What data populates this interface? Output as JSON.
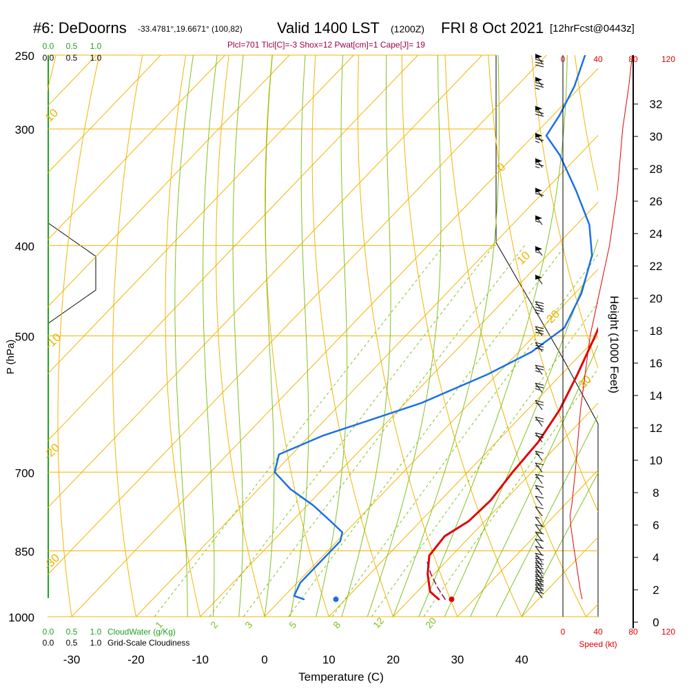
{
  "header": {
    "station": "#6: DeDoorns",
    "coords": "-33.4781°,19.6671° (100,82)",
    "valid": "Valid 1400 LST",
    "valid_z": "(1200Z)",
    "date": "FRI 8 Oct 2021",
    "forecast": "[12hrFcst@0443z]",
    "params": "Plcl=701 Tlcl[C]=-3 Shox=12 Pwat[cm]=1 Cape[J]= 19"
  },
  "colors": {
    "temperature": "#e00000",
    "dewpoint": "#1a6fe8",
    "parcel": "#8b0045",
    "isotherm": "#f0b400",
    "dry_adiabat": "#f0b400",
    "moist_adiabat": "#80c020",
    "mixing_ratio": "#80c020",
    "cloudwater": "#20a020",
    "speed": "#e00000"
  },
  "chart_data": {
    "type": "skew-t",
    "xlabel": "Temperature (C)",
    "ylabel": "P (hPa)",
    "right_ylabel": "Height (1000 Feet)",
    "pressure_levels": [
      1000,
      850,
      700,
      500,
      400,
      300,
      250
    ],
    "temperature_ticks": [
      -30,
      -20,
      -10,
      0,
      10,
      20,
      30,
      40
    ],
    "height_ticks": [
      0,
      2,
      4,
      6,
      8,
      10,
      12,
      14,
      16,
      18,
      20,
      22,
      24,
      26,
      28,
      30,
      32
    ],
    "temperature_profile": [
      {
        "p": 958,
        "t": 24.5
      },
      {
        "p": 940,
        "t": 22.0
      },
      {
        "p": 900,
        "t": 19.0
      },
      {
        "p": 860,
        "t": 16.5
      },
      {
        "p": 820,
        "t": 16.0
      },
      {
        "p": 790,
        "t": 17.5
      },
      {
        "p": 750,
        "t": 17.8
      },
      {
        "p": 700,
        "t": 17.0
      },
      {
        "p": 650,
        "t": 16.5
      },
      {
        "p": 600,
        "t": 15.0
      },
      {
        "p": 550,
        "t": 12.5
      },
      {
        "p": 500,
        "t": 9.5
      },
      {
        "p": 450,
        "t": 6.0
      },
      {
        "p": 400,
        "t": 2.0
      },
      {
        "p": 350,
        "t": -2.5
      },
      {
        "p": 300,
        "t": -8.5
      },
      {
        "p": 270,
        "t": -12.0
      },
      {
        "p": 250,
        "t": -13.5
      }
    ],
    "dewpoint_profile": [
      {
        "p": 958,
        "t": 3.5
      },
      {
        "p": 950,
        "t": 1.5
      },
      {
        "p": 920,
        "t": 0.5
      },
      {
        "p": 880,
        "t": 0.5
      },
      {
        "p": 830,
        "t": 0.5
      },
      {
        "p": 812,
        "t": -0.5
      },
      {
        "p": 790,
        "t": -4.0
      },
      {
        "p": 760,
        "t": -9.0
      },
      {
        "p": 730,
        "t": -15.0
      },
      {
        "p": 700,
        "t": -20.0
      },
      {
        "p": 670,
        "t": -22.0
      },
      {
        "p": 640,
        "t": -18.0
      },
      {
        "p": 590,
        "t": -7.5
      },
      {
        "p": 550,
        "t": -1.5
      },
      {
        "p": 520,
        "t": 2.0
      },
      {
        "p": 490,
        "t": 3.5
      },
      {
        "p": 450,
        "t": 1.0
      },
      {
        "p": 410,
        "t": -3.0
      },
      {
        "p": 380,
        "t": -8.0
      },
      {
        "p": 350,
        "t": -15.0
      },
      {
        "p": 320,
        "t": -23.0
      },
      {
        "p": 305,
        "t": -28.0
      },
      {
        "p": 290,
        "t": -29.0
      },
      {
        "p": 270,
        "t": -31.0
      },
      {
        "p": 250,
        "t": -34.0
      }
    ],
    "parcel_profile": [
      {
        "p": 958,
        "t": 25.5
      },
      {
        "p": 930,
        "t": 22.5
      },
      {
        "p": 900,
        "t": 19.5
      },
      {
        "p": 870,
        "t": 16.8
      }
    ],
    "surface_temperature": 26.5,
    "surface_dewpoint": 8.5,
    "surface_pressure": 958,
    "cloudwater_scale": [
      "0.0",
      "0.5",
      "1.0"
    ],
    "cloudiness_scale": [
      "0.0",
      "0.5",
      "1.0"
    ],
    "speed_ticks": [
      "0",
      "40",
      "80",
      "120"
    ],
    "wind_speed_profile": [
      {
        "p": 958,
        "kt": 22
      },
      {
        "p": 940,
        "kt": 20
      },
      {
        "p": 900,
        "kt": 17
      },
      {
        "p": 850,
        "kt": 13
      },
      {
        "p": 800,
        "kt": 9
      },
      {
        "p": 780,
        "kt": 8
      },
      {
        "p": 760,
        "kt": 10
      },
      {
        "p": 700,
        "kt": 14
      },
      {
        "p": 600,
        "kt": 20
      },
      {
        "p": 500,
        "kt": 31
      },
      {
        "p": 400,
        "kt": 53
      },
      {
        "p": 350,
        "kt": 62
      },
      {
        "p": 300,
        "kt": 68
      },
      {
        "p": 270,
        "kt": 75
      },
      {
        "p": 250,
        "kt": 79
      }
    ],
    "wind_barbs": [
      {
        "p": 955,
        "kt": 20
      },
      {
        "p": 945,
        "kt": 20
      },
      {
        "p": 935,
        "kt": 20
      },
      {
        "p": 925,
        "kt": 20
      },
      {
        "p": 915,
        "kt": 15
      },
      {
        "p": 905,
        "kt": 15
      },
      {
        "p": 895,
        "kt": 15
      },
      {
        "p": 885,
        "kt": 15
      },
      {
        "p": 875,
        "kt": 15
      },
      {
        "p": 860,
        "kt": 10
      },
      {
        "p": 845,
        "kt": 10
      },
      {
        "p": 830,
        "kt": 10
      },
      {
        "p": 815,
        "kt": 10
      },
      {
        "p": 800,
        "kt": 5
      },
      {
        "p": 780,
        "kt": 10
      },
      {
        "p": 760,
        "kt": 10
      },
      {
        "p": 740,
        "kt": 15
      },
      {
        "p": 720,
        "kt": 15
      },
      {
        "p": 700,
        "kt": 15
      },
      {
        "p": 680,
        "kt": 15
      },
      {
        "p": 650,
        "kt": 20
      },
      {
        "p": 625,
        "kt": 20
      },
      {
        "p": 600,
        "kt": 20
      },
      {
        "p": 575,
        "kt": 25
      },
      {
        "p": 550,
        "kt": 25
      },
      {
        "p": 520,
        "kt": 30
      },
      {
        "p": 500,
        "kt": 30
      },
      {
        "p": 470,
        "kt": 45
      },
      {
        "p": 440,
        "kt": 50
      },
      {
        "p": 410,
        "kt": 55
      },
      {
        "p": 380,
        "kt": 55
      },
      {
        "p": 355,
        "kt": 60
      },
      {
        "p": 330,
        "kt": 65
      },
      {
        "p": 310,
        "kt": 65
      },
      {
        "p": 290,
        "kt": 70
      },
      {
        "p": 270,
        "kt": 75
      },
      {
        "p": 255,
        "kt": 80
      }
    ],
    "dry_adiabat_labels": [
      "0",
      "10",
      "20",
      "30",
      "-10",
      "-20",
      "-30",
      "10"
    ],
    "mixing_ratio_labels": [
      "1",
      "2",
      "3",
      "5",
      "8",
      "12",
      "20"
    ],
    "cloudwater_label": "CloudWater (g/Kg)",
    "cloudiness_label": "Grid-Scale Cloudiness",
    "speed_label": "Speed (kt)"
  }
}
